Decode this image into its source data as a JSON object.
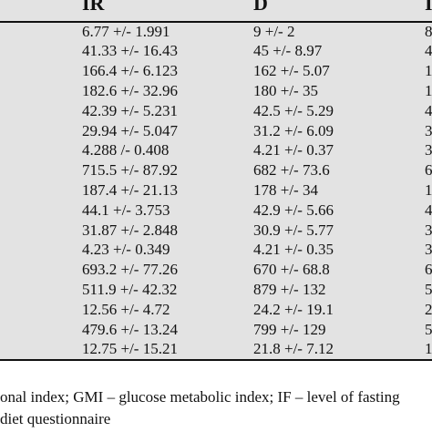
{
  "table": {
    "columns": [
      "IR",
      "D",
      "I"
    ],
    "rows": [
      [
        "6.77 +/- 1.991",
        "9 +/- 2",
        "8"
      ],
      [
        "41.33 +/- 16.43",
        "45 +/- 8.97",
        "4"
      ],
      [
        "166.4 +/- 6.123",
        "162 +/- 5.07",
        "1"
      ],
      [
        "182.6 +/- 32.96",
        "180 +/- 35",
        "1"
      ],
      [
        "42.39 +/- 5.231",
        "42.5 +/- 5.29",
        "4"
      ],
      [
        "29.94 +/- 5.047",
        "31.2 +/- 6.09",
        "3"
      ],
      [
        "4.288 /- 0.408",
        "4.21 +/- 0.37",
        "3"
      ],
      [
        "715.5 +/- 87.92",
        "682 +/- 73.6",
        "6"
      ],
      [
        "187.4 +/- 21.13",
        "178 +/- 34",
        "1"
      ],
      [
        "44.1 +/- 3.753",
        "42.9 +/- 5.66",
        "4"
      ],
      [
        "31.87 +/- 2.848",
        "30.9 +/- 5.77",
        "3"
      ],
      [
        "4.23 +/- 0.349",
        "4.21 +/- 0.35",
        "3"
      ],
      [
        "693.2 +/- 77.26",
        "670 +/- 68.8",
        "6"
      ],
      [
        "511.9 +/- 42.32",
        "879 +/- 132",
        "5"
      ],
      [
        "12.56 +/- 4.72",
        "24.2 +/- 19.1",
        "2"
      ],
      [
        "479.6 +/- 13.24",
        "799 +/- 129",
        "5"
      ],
      [
        "12.75 +/- 15.21",
        "21.8 +/- 7.12",
        "1"
      ]
    ]
  },
  "footnote": {
    "line1": "onal index; GMI – glucose metabolic index; IF – level of fasting",
    "line2": "diet questionnaire"
  }
}
